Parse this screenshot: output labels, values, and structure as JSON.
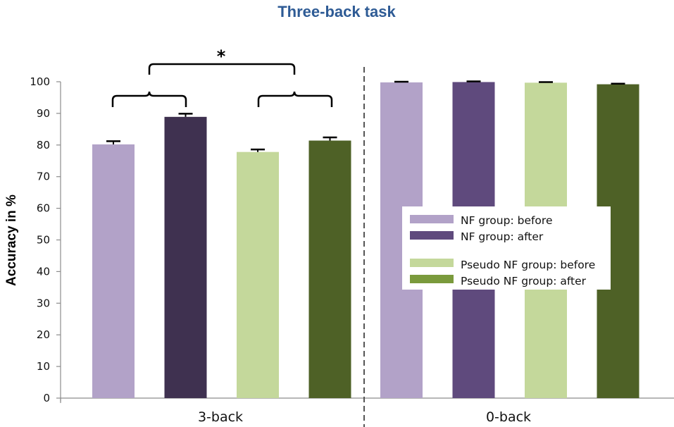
{
  "chart_data": {
    "type": "bar",
    "title": "Three-back task",
    "xlabel": "",
    "ylabel": "Accuracy in %",
    "ylim": [
      0,
      100
    ],
    "yticks": [
      0,
      10,
      20,
      30,
      40,
      50,
      60,
      70,
      80,
      90,
      100
    ],
    "grid": false,
    "categories": [
      "3-back",
      "0-back"
    ],
    "series": [
      {
        "name": "NF group: before",
        "color": "#b2a2c8",
        "values": [
          80.2,
          99.8
        ],
        "errors": [
          1.0,
          0.2
        ]
      },
      {
        "name": "NF group: after",
        "color": "#3f3150",
        "values": [
          88.9,
          99.9
        ],
        "errors": [
          1.0,
          0.2
        ]
      },
      {
        "name": "Pseudo NF group: before",
        "color": "#c4d89b",
        "values": [
          77.8,
          99.7
        ],
        "errors": [
          0.8,
          0.2
        ]
      },
      {
        "name": "Pseudo NF group: after",
        "color": "#4e6126",
        "values": [
          81.4,
          99.2
        ],
        "errors": [
          1.0,
          0.2
        ]
      }
    ],
    "series_colors_0back": [
      "#b2a2c8",
      "#5f4a7d",
      "#c4d89b",
      "#4e6126"
    ],
    "legend_position": "inside right, middle",
    "legend_swatch_colors": [
      "#b2a2c8",
      "#5f4a7d",
      "#c4d89b",
      "#7a9a3c"
    ],
    "annotations": [
      {
        "text": "*",
        "type": "significance bracket",
        "between": "NF group (3-back) vs Pseudo NF group (3-back)"
      }
    ],
    "separator": "dashed vertical line between 3-back and 0-back"
  }
}
